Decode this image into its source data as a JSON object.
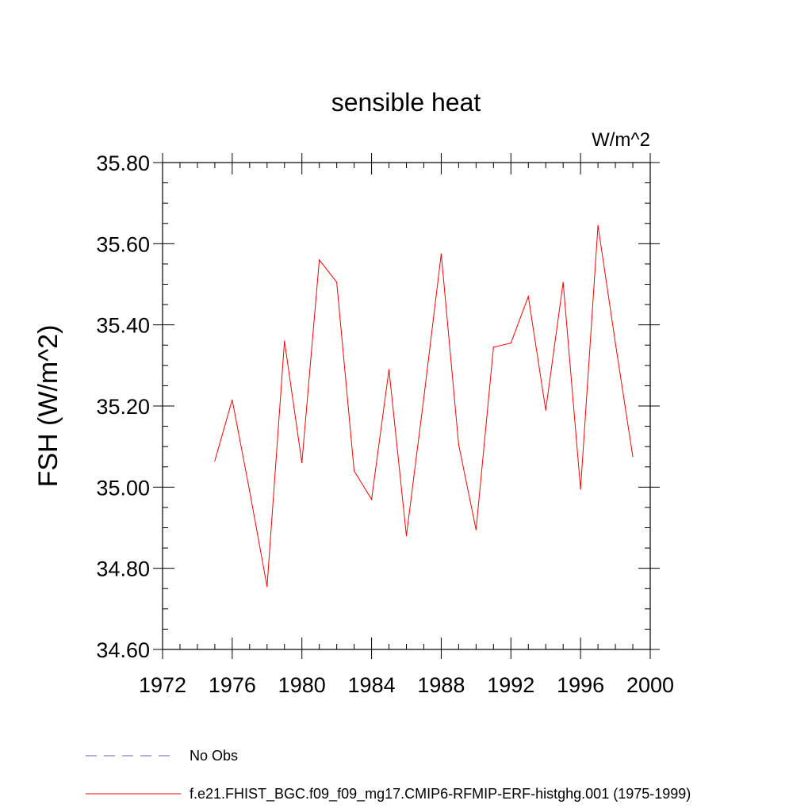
{
  "chart_data": {
    "type": "line",
    "title": "sensible heat",
    "units_label": "W/m^2",
    "ylabel": "FSH  (W/m^2)",
    "xlabel": "",
    "xlim": [
      1972,
      2000
    ],
    "ylim": [
      34.6,
      35.8
    ],
    "x_ticks": [
      1972,
      1976,
      1980,
      1984,
      1988,
      1992,
      1996,
      2000
    ],
    "y_ticks": [
      "34.60",
      "34.80",
      "35.00",
      "35.20",
      "35.40",
      "35.60",
      "35.80"
    ],
    "grid": false,
    "series": [
      {
        "name": "f.e21.FHIST_BGC.f09_f09_mg17.CMIP6-RFMIP-ERF-histghg.001 (1975-1999)",
        "color": "#ff0000",
        "style": "solid",
        "x": [
          1975,
          1976,
          1977,
          1978,
          1979,
          1980,
          1981,
          1982,
          1983,
          1984,
          1985,
          1986,
          1987,
          1988,
          1989,
          1990,
          1991,
          1992,
          1993,
          1994,
          1995,
          1996,
          1997,
          1998,
          1999
        ],
        "values": [
          35.065,
          35.215,
          34.99,
          34.755,
          35.36,
          35.06,
          35.56,
          35.505,
          35.04,
          34.97,
          35.29,
          34.88,
          35.22,
          35.575,
          35.105,
          34.895,
          35.345,
          35.355,
          35.47,
          35.19,
          35.505,
          34.995,
          35.645,
          35.355,
          35.075
        ]
      }
    ],
    "legend": [
      {
        "label": "No Obs",
        "color": "#6a5acd",
        "style": "dashed"
      },
      {
        "label": "f.e21.FHIST_BGC.f09_f09_mg17.CMIP6-RFMIP-ERF-histghg.001 (1975-1999)",
        "color": "#ff0000",
        "style": "solid"
      }
    ]
  }
}
